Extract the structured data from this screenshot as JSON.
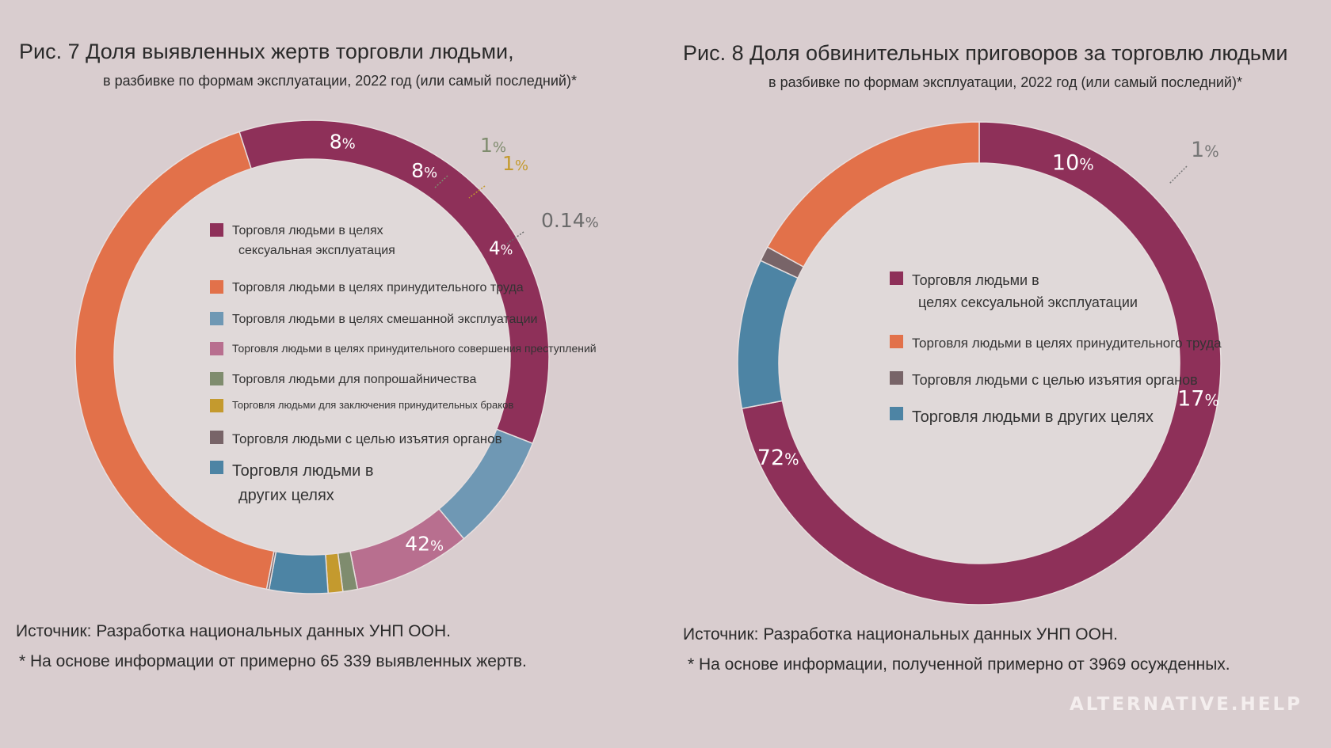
{
  "chart_data": [
    {
      "type": "donut",
      "title": "Рис. 7 Доля выявленных жертв торговли людьми,",
      "subtitle": "в разбивке по формам эксплуатации, 2022 год (или самый последний)*",
      "series": [
        {
          "name": "Торговля людьми в целях сексуальная эксплуатация",
          "value": 36,
          "label": "36",
          "color": "#8e3059"
        },
        {
          "name": "Торговля людьми в целях смешанной эксплуатации",
          "value": 8,
          "label": "8",
          "color": "#6f98b4"
        },
        {
          "name": "Торговля людьми в целях принудительного совершения преступлений",
          "value": 8,
          "label": "8",
          "color": "#b86f8f"
        },
        {
          "name": "Торговля людьми для попрошайничества",
          "value": 1,
          "label": "1",
          "color": "#7f8c6e"
        },
        {
          "name": "Торговля людьми для заключения принудительных браков",
          "value": 1,
          "label": "1",
          "color": "#c49a2e"
        },
        {
          "name": "Торговля людьми в других целях",
          "value": 4,
          "label": "4",
          "color": "#4d84a4"
        },
        {
          "name": "Торговля людьми с целью изъятия органов",
          "value": 0.14,
          "label": "0.14",
          "color": "#786468"
        },
        {
          "name": "Торговля людьми в целях принудительного труда",
          "value": 42,
          "label": "42",
          "color": "#e2714a"
        }
      ],
      "legend": [
        {
          "label_1": "Торговля людьми в целях",
          "label_2": "сексуальная эксплуатация",
          "color": "#8e3059"
        },
        {
          "label_1": "Торговля людьми в целях принудительного труда",
          "label_2": "",
          "color": "#e2714a"
        },
        {
          "label_1": "Торговля людьми в целях смешанной эксплуатации",
          "label_2": "",
          "color": "#6f98b4"
        },
        {
          "label_1": "Торговля людьми в целях принудительного совершения преступлений",
          "label_2": "",
          "color": "#b86f8f"
        },
        {
          "label_1": "Торговля людьми для попрошайничества",
          "label_2": "",
          "color": "#7f8c6e"
        },
        {
          "label_1": "Торговля людьми для заключения принудительных браков",
          "label_2": "",
          "color": "#c49a2e"
        },
        {
          "label_1": "Торговля людьми с целью изъятия органов",
          "label_2": "",
          "color": "#786468"
        },
        {
          "label_1": "Торговля людьми в",
          "label_2": "других целях",
          "color": "#4d84a4"
        }
      ],
      "source": "Источник: Разработка национальных данных УНП ООН.",
      "footnote": "* На основе информации от примерно 65 339 выявленных жертв."
    },
    {
      "type": "donut",
      "title": "Рис. 8 Доля обвинительных приговоров за торговлю людьми",
      "subtitle": "в разбивке по формам эксплуатации, 2022 год (или самый последний)*",
      "series": [
        {
          "name": "Торговля людьми в целях сексуальной эксплуатации",
          "value": 72,
          "label": "72",
          "color": "#8e3059"
        },
        {
          "name": "Торговля людьми в других целях",
          "value": 10,
          "label": "10",
          "color": "#4d84a4"
        },
        {
          "name": "Торговля людьми с целью изъятия органов",
          "value": 1,
          "label": "1",
          "color": "#786468"
        },
        {
          "name": "Торговля людьми в целях принудительного труда",
          "value": 17,
          "label": "17",
          "color": "#e2714a"
        }
      ],
      "legend": [
        {
          "label_1": "Торговля людьми в",
          "label_2": "целях сексуальной эксплуатации",
          "color": "#8e3059"
        },
        {
          "label_1": "Торговля людьми в целях принудительного труда",
          "label_2": "",
          "color": "#e2714a"
        },
        {
          "label_1": "Торговля людьми с целью изъятия органов",
          "label_2": "",
          "color": "#786468"
        },
        {
          "label_1": "Торговля людьми в других целях",
          "label_2": "",
          "color": "#4d84a4"
        }
      ],
      "source": "Источник: Разработка национальных данных УНП ООН.",
      "footnote": "* На основе информации, полученной примерно от 3969 осужденных."
    }
  ],
  "percent_sign": "%",
  "brand": "ALTERNATIVE.HELP",
  "colors": {
    "background": "#d9cdcf",
    "inner": "#e0d9d9"
  }
}
